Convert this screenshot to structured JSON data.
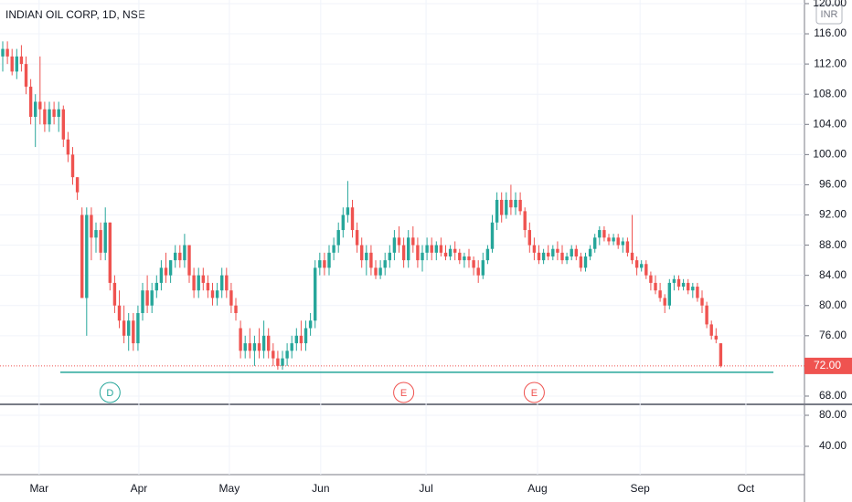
{
  "chart_data": {
    "type": "candlestick",
    "title": "INDIAN OIL CORP, 1D, NSE",
    "currency": "INR",
    "up_color": "#26a69a",
    "down_color": "#ef5350",
    "grid": true,
    "xlim": [
      -0.59,
      171.96
    ],
    "xticks": [
      {
        "value": 7.8,
        "label": "Mar"
      },
      {
        "value": 29.2,
        "label": "Apr"
      },
      {
        "value": 48.6,
        "label": "May"
      },
      {
        "value": 68.2,
        "label": "Jun"
      },
      {
        "value": 90.8,
        "label": "Jul"
      },
      {
        "value": 114.7,
        "label": "Aug"
      },
      {
        "value": 136.7,
        "label": "Sep"
      },
      {
        "value": 159.4,
        "label": "Oct"
      }
    ],
    "ylim": [
      67.15,
      120.48
    ],
    "yticks": [
      {
        "value": 68,
        "label": "68.00"
      },
      {
        "value": 76,
        "label": "76.00"
      },
      {
        "value": 80,
        "label": "80.00"
      },
      {
        "value": 84,
        "label": "84.00"
      },
      {
        "value": 88,
        "label": "88.00"
      },
      {
        "value": 92,
        "label": "92.00"
      },
      {
        "value": 96,
        "label": "96.00"
      },
      {
        "value": 100,
        "label": "100.00"
      },
      {
        "value": 104,
        "label": "104.00"
      },
      {
        "value": 108,
        "label": "108.00"
      },
      {
        "value": 112,
        "label": "112.00"
      },
      {
        "value": 116,
        "label": "116.00"
      },
      {
        "value": 120,
        "label": "120.00"
      }
    ],
    "last_price": {
      "value": 72,
      "label": "72.00",
      "color": "#ef5350"
    },
    "support": {
      "value": 71.15,
      "x": [
        12.35,
        165.3
      ],
      "color": "#26a69a"
    },
    "events": [
      {
        "x": 23,
        "label": "D",
        "color": "#26a69a"
      },
      {
        "x": 86,
        "label": "E",
        "color": "#ef5350"
      },
      {
        "x": 114,
        "label": "E",
        "color": "#ef5350"
      }
    ],
    "lower_pane": {
      "ylim": [
        3.5,
        90.6
      ],
      "yticks": [
        {
          "value": 40,
          "label": "40.00"
        },
        {
          "value": 80,
          "label": "80.00"
        }
      ]
    },
    "ohlc": [
      [
        113,
        115,
        111,
        114
      ],
      [
        114,
        115,
        112,
        113
      ],
      [
        113,
        114,
        110.5,
        111
      ],
      [
        111,
        114,
        110,
        113
      ],
      [
        113,
        114.5,
        111,
        112
      ],
      [
        112,
        113,
        108,
        109
      ],
      [
        109,
        110,
        104,
        105
      ],
      [
        105,
        108,
        101,
        107
      ],
      [
        107,
        113,
        104,
        106
      ],
      [
        106,
        107,
        103,
        104
      ],
      [
        104,
        107,
        103,
        106
      ],
      [
        106,
        107,
        104,
        105
      ],
      [
        105,
        107,
        103,
        106
      ],
      [
        106,
        106.5,
        101,
        102
      ],
      [
        102,
        103,
        99,
        100
      ],
      [
        100,
        101,
        96,
        97
      ],
      [
        97,
        97,
        94,
        95
      ],
      [
        92,
        93,
        81,
        81
      ],
      [
        81,
        93,
        76,
        92
      ],
      [
        92,
        93,
        86,
        89
      ],
      [
        89,
        91,
        87,
        90
      ],
      [
        90,
        91,
        86,
        87
      ],
      [
        87,
        93,
        86,
        91
      ],
      [
        91,
        91,
        82,
        83
      ],
      [
        83,
        84,
        79,
        80
      ],
      [
        80,
        82,
        77,
        78
      ],
      [
        78,
        80,
        75,
        76
      ],
      [
        76,
        79,
        74,
        78
      ],
      [
        78,
        79,
        74,
        75
      ],
      [
        75,
        80,
        74,
        79
      ],
      [
        79,
        83,
        78,
        82
      ],
      [
        82,
        84,
        79,
        80
      ],
      [
        80,
        83,
        79,
        82
      ],
      [
        82,
        84,
        81,
        83
      ],
      [
        83,
        86,
        82,
        85
      ],
      [
        85,
        87,
        83,
        84
      ],
      [
        84,
        86,
        83,
        86
      ],
      [
        86,
        88,
        85,
        87
      ],
      [
        87,
        88,
        85,
        86
      ],
      [
        86,
        89.5,
        85,
        88
      ],
      [
        88,
        88,
        83,
        84
      ],
      [
        84,
        85,
        81,
        82
      ],
      [
        82,
        85,
        81,
        84
      ],
      [
        84,
        85,
        82,
        83
      ],
      [
        83,
        84,
        81,
        82
      ],
      [
        82,
        83,
        80,
        81
      ],
      [
        81,
        83,
        80,
        82
      ],
      [
        82,
        85,
        81,
        84
      ],
      [
        84,
        85,
        81,
        82
      ],
      [
        82,
        83,
        79,
        80
      ],
      [
        80,
        81,
        78,
        79
      ],
      [
        77,
        78,
        73,
        74
      ],
      [
        74,
        76,
        73,
        75
      ],
      [
        75,
        77,
        73,
        74
      ],
      [
        74,
        76,
        72,
        75
      ],
      [
        75,
        77,
        73,
        74
      ],
      [
        74,
        78,
        73,
        76
      ],
      [
        76,
        77,
        73,
        74
      ],
      [
        74,
        75,
        72,
        73
      ],
      [
        73,
        74,
        71.5,
        72
      ],
      [
        72,
        74,
        71.5,
        73
      ],
      [
        73,
        75,
        72,
        74
      ],
      [
        74,
        76,
        73,
        75
      ],
      [
        75,
        77,
        74,
        76
      ],
      [
        76,
        78,
        74,
        75
      ],
      [
        75,
        78,
        74,
        77
      ],
      [
        77,
        79,
        76,
        78
      ],
      [
        78,
        86,
        77,
        85
      ],
      [
        85,
        87,
        84,
        86
      ],
      [
        86,
        87,
        84,
        85
      ],
      [
        85,
        88,
        84,
        87
      ],
      [
        87,
        89,
        86,
        88
      ],
      [
        88,
        91,
        87,
        90
      ],
      [
        90,
        93,
        89,
        92
      ],
      [
        92,
        96.5,
        91,
        93
      ],
      [
        93,
        94,
        89,
        90
      ],
      [
        90,
        91,
        87,
        88
      ],
      [
        88,
        89,
        85,
        86
      ],
      [
        86,
        88,
        84,
        87
      ],
      [
        87,
        88,
        84,
        85
      ],
      [
        85,
        86,
        83.5,
        84
      ],
      [
        84,
        86,
        83.5,
        85
      ],
      [
        85,
        87,
        84,
        86
      ],
      [
        86,
        88,
        85,
        87
      ],
      [
        87,
        90,
        86,
        89
      ],
      [
        89,
        90.5,
        87,
        88
      ],
      [
        88,
        89,
        85,
        86
      ],
      [
        86,
        90,
        85,
        89
      ],
      [
        89,
        90.5,
        87,
        88
      ],
      [
        88,
        89,
        85,
        86
      ],
      [
        86,
        88,
        84.5,
        87
      ],
      [
        87,
        89,
        86,
        88
      ],
      [
        88,
        89,
        86,
        87
      ],
      [
        87,
        88.5,
        86,
        88
      ],
      [
        88,
        89,
        86.5,
        87
      ],
      [
        87,
        88,
        86,
        86.5
      ],
      [
        86.5,
        88,
        86,
        87.5
      ],
      [
        87.5,
        88.5,
        86,
        87
      ],
      [
        87,
        87.5,
        85.5,
        86
      ],
      [
        86,
        87,
        85,
        86.5
      ],
      [
        86.5,
        87.5,
        85,
        86
      ],
      [
        86,
        86.5,
        84,
        85
      ],
      [
        85,
        86,
        83,
        84
      ],
      [
        84,
        87,
        83.5,
        86
      ],
      [
        86,
        88,
        85.5,
        87.5
      ],
      [
        87.5,
        92,
        87,
        91
      ],
      [
        91,
        95,
        90,
        94
      ],
      [
        94,
        95,
        91,
        92
      ],
      [
        92,
        95,
        91.5,
        94
      ],
      [
        94,
        96,
        92,
        93
      ],
      [
        93,
        95,
        92,
        94
      ],
      [
        94,
        95,
        92,
        92.5
      ],
      [
        92.5,
        93,
        89,
        90
      ],
      [
        90,
        91,
        87,
        88
      ],
      [
        88,
        89,
        86,
        87
      ],
      [
        87,
        88,
        85.5,
        86
      ],
      [
        86,
        87.5,
        85.5,
        87
      ],
      [
        87,
        88,
        86,
        86.5
      ],
      [
        86.5,
        88,
        86,
        87.5
      ],
      [
        87.5,
        88.5,
        86,
        87
      ],
      [
        87,
        88,
        85.5,
        86
      ],
      [
        86,
        87,
        85.5,
        86.5
      ],
      [
        86.5,
        88,
        86,
        87.5
      ],
      [
        87.5,
        88,
        86,
        86.5
      ],
      [
        86.5,
        87,
        84.5,
        85
      ],
      [
        85,
        87,
        84.5,
        86.5
      ],
      [
        86.5,
        88,
        86,
        87.5
      ],
      [
        87.5,
        89.5,
        87,
        89
      ],
      [
        89,
        90.5,
        88,
        90
      ],
      [
        90,
        90.5,
        88.5,
        89
      ],
      [
        89,
        89.5,
        88,
        88.5
      ],
      [
        88.5,
        89.5,
        88,
        89
      ],
      [
        89,
        89.5,
        87.5,
        88
      ],
      [
        88,
        89,
        87,
        88.5
      ],
      [
        88.5,
        89,
        86.5,
        87
      ],
      [
        87,
        92,
        85.5,
        86
      ],
      [
        86,
        86.5,
        84,
        85
      ],
      [
        85,
        86,
        84.5,
        85.5
      ],
      [
        85.5,
        86,
        83.5,
        84
      ],
      [
        84,
        84.5,
        82,
        83
      ],
      [
        83,
        84,
        81.5,
        82
      ],
      [
        82,
        83,
        80.5,
        81
      ],
      [
        81,
        81.5,
        79,
        80
      ],
      [
        80,
        83.5,
        79.5,
        83
      ],
      [
        83,
        84,
        82,
        83.5
      ],
      [
        83.5,
        84,
        82,
        82.5
      ],
      [
        82.5,
        83.5,
        82,
        83
      ],
      [
        83,
        83.5,
        81.5,
        82
      ],
      [
        82,
        83,
        81,
        82.5
      ],
      [
        82.5,
        83,
        80.5,
        81
      ],
      [
        81,
        82,
        79,
        80
      ],
      [
        80,
        80.5,
        77,
        77.5
      ],
      [
        77.5,
        78,
        75.5,
        76
      ],
      [
        76,
        77,
        75,
        75.5
      ],
      [
        75,
        75,
        71.8,
        72
      ]
    ]
  }
}
